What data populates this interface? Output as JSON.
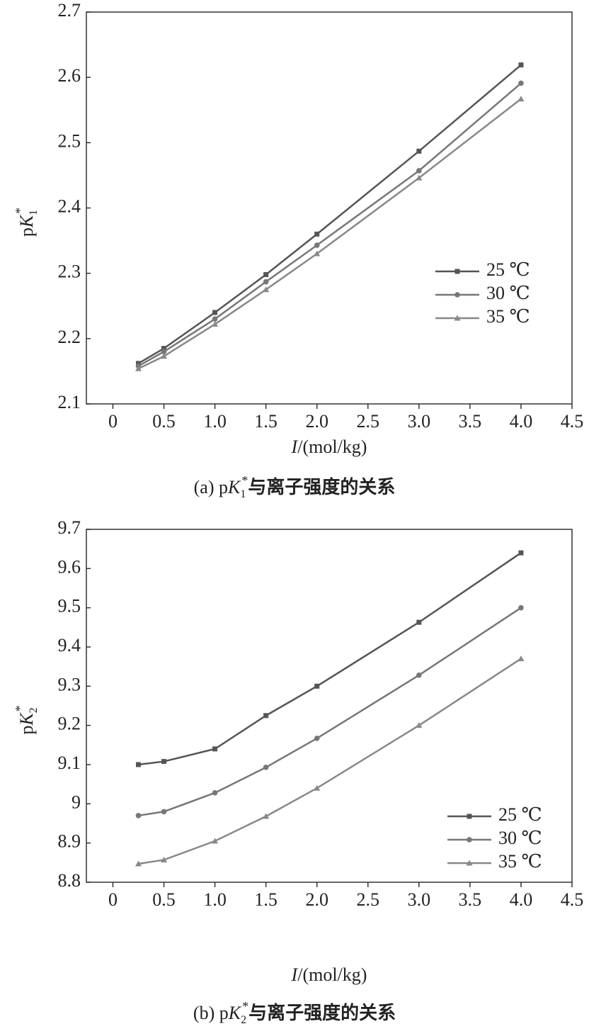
{
  "chart_data": [
    {
      "type": "line",
      "caption": [
        "(a) p",
        "K",
        "1",
        "*",
        "与离子强度的关系"
      ],
      "ylabel": [
        "p",
        "K",
        "1",
        "*"
      ],
      "xlabel": [
        "I",
        "/(mol/kg)"
      ],
      "x": [
        0.25,
        0.5,
        1,
        1.5,
        2,
        3,
        4
      ],
      "xlim": [
        -0.26,
        4.5
      ],
      "xticks": [
        0,
        0.5,
        {
          "value": 1,
          "label": "1.0"
        },
        1.5,
        {
          "value": 2,
          "label": "2.0"
        },
        2.5,
        {
          "value": 3,
          "label": "3.0"
        },
        3.5,
        {
          "value": 4,
          "label": "4.0"
        },
        4.5
      ],
      "ylim": [
        2.1,
        2.7
      ],
      "yticks": [
        2.1,
        2.2,
        2.3,
        2.4,
        2.5,
        2.6,
        2.7
      ],
      "legend": "right",
      "series": [
        {
          "name": "25 ℃",
          "color": "#555555",
          "marker": "square",
          "values": [
            2.162,
            2.185,
            2.24,
            2.298,
            2.36,
            2.487,
            2.619
          ]
        },
        {
          "name": "30 ℃",
          "color": "#777777",
          "marker": "circle",
          "values": [
            2.158,
            2.18,
            2.23,
            2.287,
            2.343,
            2.457,
            2.591
          ]
        },
        {
          "name": "35 ℃",
          "color": "#888888",
          "marker": "triangle",
          "values": [
            2.154,
            2.173,
            2.222,
            2.275,
            2.33,
            2.446,
            2.567
          ]
        }
      ]
    },
    {
      "type": "line",
      "caption": [
        "(b) p",
        "K",
        "2",
        "*",
        "与离子强度的关系"
      ],
      "ylabel": [
        "p",
        "K",
        "2",
        "*"
      ],
      "xlabel": [
        "I",
        "/(mol/kg)"
      ],
      "x": [
        0.25,
        0.5,
        1,
        1.5,
        2,
        3,
        4
      ],
      "xlim": [
        -0.26,
        4.5
      ],
      "xticks": [
        0,
        0.5,
        {
          "value": 1,
          "label": "1.0"
        },
        1.5,
        {
          "value": 2,
          "label": "2.0"
        },
        2.5,
        {
          "value": 3,
          "label": "3.0"
        },
        3.5,
        {
          "value": 4,
          "label": "4.0"
        },
        4.5
      ],
      "ylim": [
        8.8,
        9.7
      ],
      "yticks": [
        8.8,
        8.9,
        9.0,
        9.1,
        9.2,
        9.3,
        9.4,
        9.5,
        9.6,
        9.7
      ],
      "legend": "lower right",
      "series": [
        {
          "name": "25 ℃",
          "color": "#555555",
          "marker": "square",
          "values": [
            9.1,
            9.108,
            9.14,
            9.225,
            9.3,
            9.463,
            9.64
          ]
        },
        {
          "name": "30 ℃",
          "color": "#777777",
          "marker": "circle",
          "values": [
            8.97,
            8.98,
            9.028,
            9.093,
            9.167,
            9.328,
            9.5
          ]
        },
        {
          "name": "35 ℃",
          "color": "#888888",
          "marker": "triangle",
          "values": [
            8.847,
            8.857,
            8.905,
            8.968,
            9.04,
            9.2,
            9.37
          ]
        }
      ]
    }
  ]
}
